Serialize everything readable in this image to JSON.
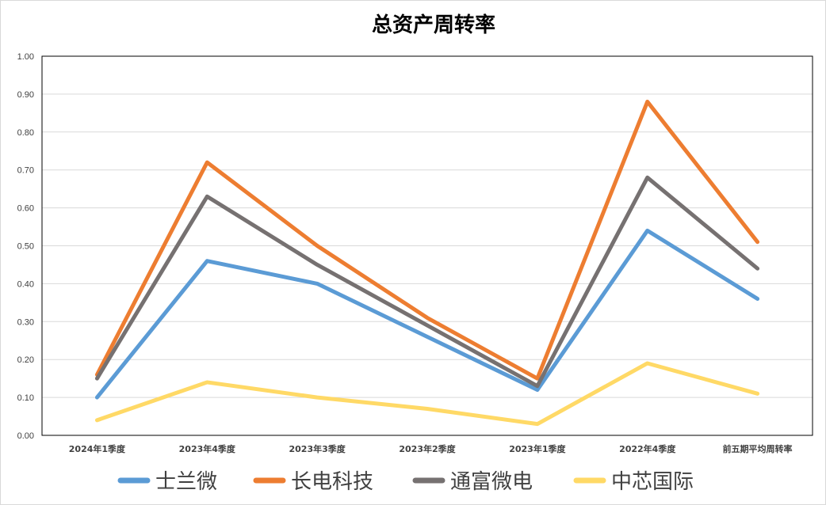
{
  "chart_data": {
    "type": "line",
    "title": "总资产周转率",
    "categories": [
      "2024年1季度",
      "2023年4季度",
      "2023年3季度",
      "2023年2季度",
      "2023年1季度",
      "2022年4季度",
      "前五期平均周转率"
    ],
    "ylim": [
      0,
      1.0
    ],
    "yticks": [
      "0.00",
      "0.10",
      "0.20",
      "0.30",
      "0.40",
      "0.50",
      "0.60",
      "0.70",
      "0.80",
      "0.90",
      "1.00"
    ],
    "grid": true,
    "legend_position": "bottom",
    "series": [
      {
        "name": "士兰微",
        "color": "#5B9BD5",
        "values": [
          0.1,
          0.46,
          0.4,
          0.26,
          0.12,
          0.54,
          0.36
        ]
      },
      {
        "name": "长电科技",
        "color": "#ED7D31",
        "values": [
          0.16,
          0.72,
          0.5,
          0.31,
          0.15,
          0.88,
          0.51
        ]
      },
      {
        "name": "通富微电",
        "color": "#767171",
        "values": [
          0.15,
          0.63,
          0.45,
          0.29,
          0.13,
          0.68,
          0.44
        ]
      },
      {
        "name": "中芯国际",
        "color": "#FFD966",
        "values": [
          0.04,
          0.14,
          0.1,
          0.07,
          0.03,
          0.19,
          0.11
        ]
      }
    ]
  }
}
